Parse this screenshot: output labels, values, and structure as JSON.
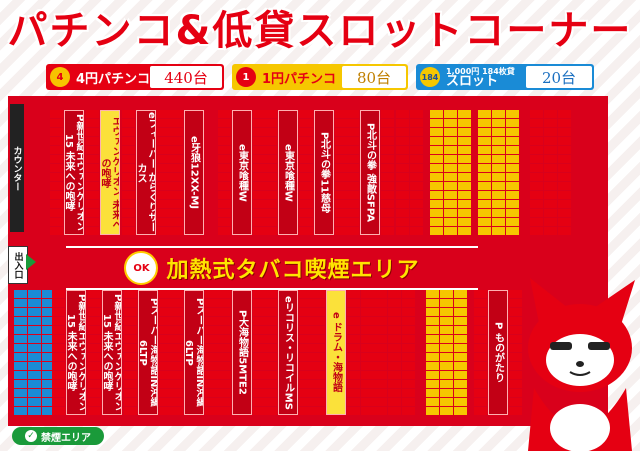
{
  "title": "パチンコ&低貸スロットコーナー",
  "legend": [
    {
      "badge": "4",
      "label": "4円パチンコ",
      "count": "440台"
    },
    {
      "badge": "1",
      "label": "1円パチンコ",
      "count": "80台"
    },
    {
      "badge": "184",
      "label_small": "1,000円 184枚貸",
      "label": "スロット",
      "count": "20台"
    }
  ],
  "counter_label": "カウンター",
  "entrance_label": "出入口",
  "smoking_area": {
    "ok_badge": "OK",
    "label": "加熱式タバコ喫煙エリア"
  },
  "no_smoking_label": "禁煙エリア",
  "machines_top": [
    "P新世紀エヴァンゲリオン15 未来への咆哮",
    "エヴァンゲリオン 未来への咆哮",
    "eフィーバー からくりサーカス",
    "e牙狼12XX-MJ",
    "e東京喰種W",
    "e東京喰種W",
    "P北斗の拳11慈母",
    "P北斗の拳 強敵SFPA"
  ],
  "machines_bottom": [
    "P新世紀エヴァンゲリオン15 未来への咆哮",
    "P新世紀エヴァンゲリオン15 未来への咆哮",
    "Pスーパー海物語IN沖縄6LTP",
    "Pスーパー海物語IN沖縄6LTP",
    "P大海物語5MTE2",
    "eリコリス・リコイルMS",
    "e ドラム・海物語",
    "P ものがたり"
  ]
}
